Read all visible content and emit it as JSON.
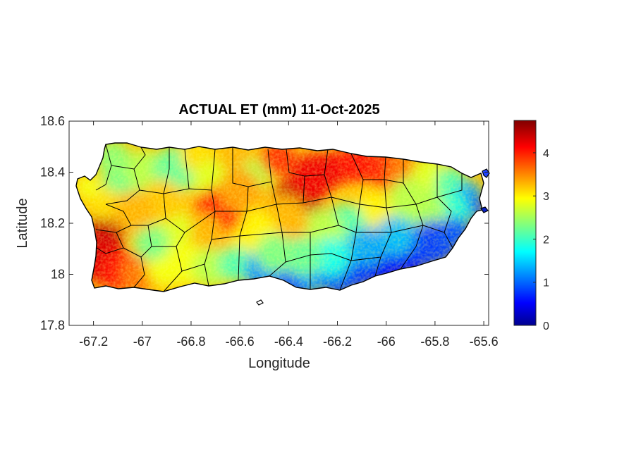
{
  "chart_data": {
    "type": "heatmap",
    "title": "ACTUAL ET (mm) 11-Oct-2025",
    "xlabel": "Longitude",
    "ylabel": "Latitude",
    "xlim": [
      -67.3,
      -65.58
    ],
    "ylim": [
      17.8,
      18.6
    ],
    "xticks": [
      -67.2,
      -67,
      -66.8,
      -66.6,
      -66.4,
      -66.2,
      -66,
      -65.8,
      -65.6
    ],
    "yticks": [
      17.8,
      18,
      18.2,
      18.4,
      18.6
    ],
    "xtick_labels": [
      "-67.2",
      "-67",
      "-66.8",
      "-66.6",
      "-66.4",
      "-66.2",
      "-66",
      "-65.8",
      "-65.6"
    ],
    "ytick_labels": [
      "17.8",
      "18",
      "18.2",
      "18.4",
      "18.6"
    ],
    "colorbar": {
      "colormap": "jet",
      "range": [
        0,
        4.75
      ],
      "ticks": [
        0,
        1,
        2,
        3,
        4
      ],
      "tick_labels": [
        "0",
        "1",
        "2",
        "3",
        "4"
      ]
    },
    "grid": false,
    "legend": "none",
    "regions": [
      {
        "name": "southwest coast",
        "approx_value": 4.2
      },
      {
        "name": "north-central interior",
        "approx_value": 4.3
      },
      {
        "name": "northwest",
        "approx_value": 2.5
      },
      {
        "name": "west-central",
        "approx_value": 3.0
      },
      {
        "name": "central interior",
        "approx_value": 3.3
      },
      {
        "name": "south-central coast",
        "approx_value": 1.0
      },
      {
        "name": "southeast coast",
        "approx_value": 0.5
      },
      {
        "name": "east coast",
        "approx_value": 0.7
      }
    ]
  }
}
